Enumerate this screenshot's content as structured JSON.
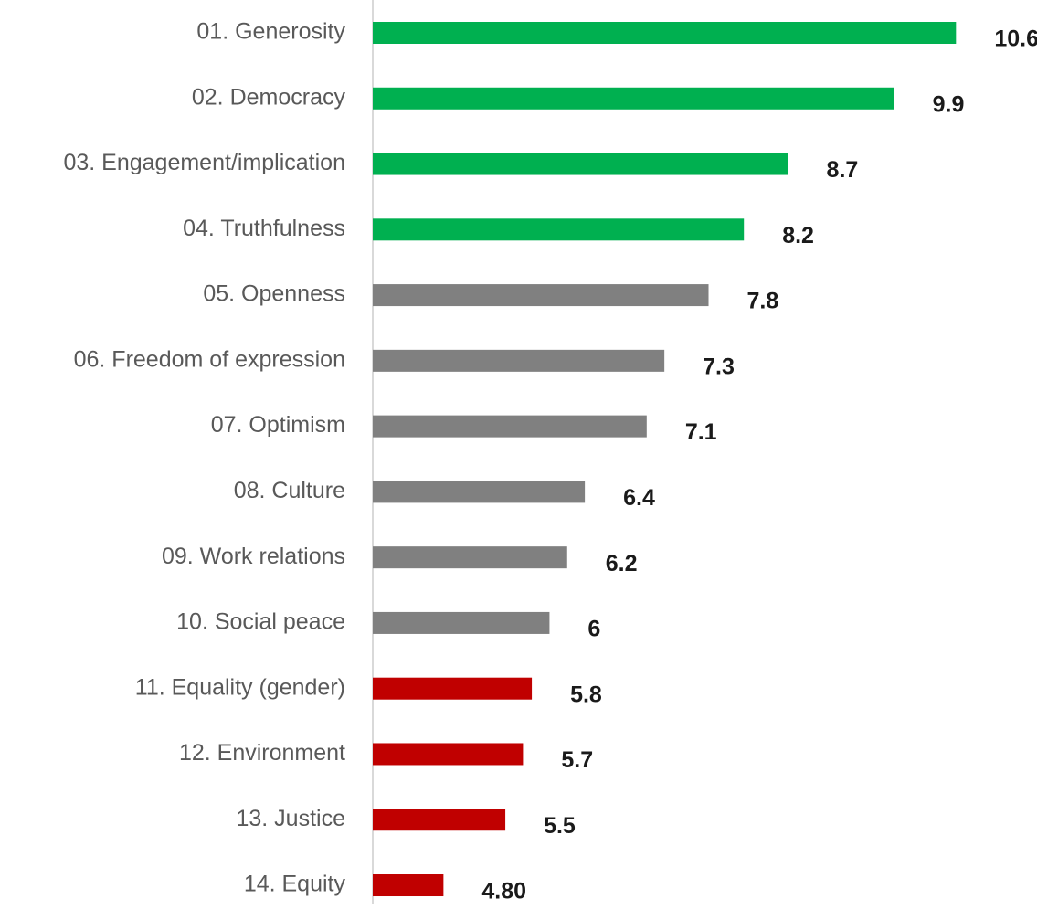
{
  "chart_data": {
    "type": "bar",
    "orientation": "horizontal",
    "categories": [
      "01. Generosity",
      "02. Democracy",
      "03. Engagement/implication",
      "04. Truthfulness",
      "05. Openness",
      "06. Freedom of expression",
      "07. Optimism",
      "08. Culture",
      "09. Work relations",
      "10. Social peace",
      "11. Equality (gender)",
      "12. Environment",
      "13. Justice",
      "14. Equity"
    ],
    "values": [
      10.6,
      9.9,
      8.7,
      8.2,
      7.8,
      7.3,
      7.1,
      6.4,
      6.2,
      6,
      5.8,
      5.7,
      5.5,
      4.8
    ],
    "value_labels": [
      "10.6",
      "9.9",
      "8.7",
      "8.2",
      "7.8",
      "7.3",
      "7.1",
      "6.4",
      "6.2",
      "6",
      "5.8",
      "5.7",
      "5.5",
      "4.80"
    ],
    "colors": [
      "#00b050",
      "#00b050",
      "#00b050",
      "#00b050",
      "#808080",
      "#808080",
      "#808080",
      "#808080",
      "#808080",
      "#808080",
      "#c00000",
      "#c00000",
      "#c00000",
      "#c00000"
    ],
    "xlim": [
      4,
      11
    ]
  }
}
